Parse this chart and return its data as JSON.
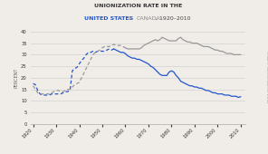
{
  "title_line1": "UNIONIZATION RATE IN THE",
  "title_line2_parts": [
    {
      "text": "UNITED STATES",
      "color": "#2255cc",
      "bold": true
    },
    {
      "text": " & ",
      "color": "#888888",
      "bold": false
    },
    {
      "text": "CANADA",
      "color": "#888888",
      "bold": false
    },
    {
      "text": ", 1920–2010",
      "color": "#444444",
      "bold": false
    }
  ],
  "ylabel": "PERCENT",
  "right_label": "CHART: BLOOMBERG VIEW",
  "us_color": "#2255cc",
  "canada_color": "#999999",
  "background": "#f0ede8",
  "us_split_dash": 1955,
  "canada_split_dash": 1960,
  "us_data": {
    "years": [
      1920,
      1921,
      1922,
      1923,
      1924,
      1925,
      1926,
      1927,
      1928,
      1929,
      1930,
      1931,
      1932,
      1933,
      1934,
      1935,
      1936,
      1937,
      1938,
      1939,
      1940,
      1941,
      1942,
      1943,
      1944,
      1945,
      1946,
      1947,
      1948,
      1949,
      1950,
      1951,
      1952,
      1953,
      1954,
      1955,
      1956,
      1957,
      1958,
      1959,
      1960,
      1961,
      1962,
      1963,
      1964,
      1965,
      1966,
      1967,
      1968,
      1969,
      1970,
      1971,
      1972,
      1973,
      1974,
      1975,
      1976,
      1977,
      1978,
      1979,
      1980,
      1981,
      1982,
      1983,
      1984,
      1985,
      1986,
      1987,
      1988,
      1989,
      1990,
      1991,
      1992,
      1993,
      1994,
      1995,
      1996,
      1997,
      1998,
      1999,
      2000,
      2001,
      2002,
      2003,
      2004,
      2005,
      2006,
      2007,
      2008,
      2009,
      2010
    ],
    "values": [
      17.5,
      17.0,
      14.5,
      13.0,
      12.5,
      12.5,
      12.5,
      12.5,
      13.0,
      13.0,
      13.0,
      13.0,
      13.0,
      13.5,
      14.0,
      14.0,
      14.5,
      23.0,
      24.0,
      24.5,
      26.0,
      27.5,
      28.5,
      30.0,
      31.0,
      31.0,
      31.5,
      31.0,
      31.5,
      31.5,
      31.5,
      31.5,
      32.0,
      32.5,
      32.0,
      32.5,
      32.0,
      31.5,
      31.0,
      31.0,
      30.5,
      29.5,
      29.0,
      28.5,
      28.5,
      28.0,
      28.0,
      27.5,
      27.0,
      26.5,
      26.0,
      25.0,
      24.5,
      23.5,
      22.5,
      21.5,
      21.0,
      21.0,
      21.0,
      22.5,
      23.0,
      22.5,
      21.0,
      20.0,
      18.5,
      18.0,
      17.5,
      17.0,
      16.5,
      16.5,
      16.0,
      16.0,
      15.5,
      15.5,
      15.0,
      14.5,
      14.5,
      14.0,
      13.5,
      13.5,
      13.0,
      13.0,
      13.0,
      12.5,
      12.5,
      12.5,
      12.0,
      12.0,
      12.0,
      11.5,
      11.8
    ]
  },
  "canada_data": {
    "years": [
      1920,
      1921,
      1922,
      1923,
      1924,
      1925,
      1926,
      1927,
      1928,
      1929,
      1930,
      1931,
      1932,
      1933,
      1934,
      1935,
      1936,
      1937,
      1938,
      1939,
      1940,
      1941,
      1942,
      1943,
      1944,
      1945,
      1946,
      1947,
      1948,
      1949,
      1950,
      1951,
      1952,
      1953,
      1954,
      1955,
      1956,
      1957,
      1958,
      1959,
      1960,
      1961,
      1962,
      1963,
      1964,
      1965,
      1966,
      1967,
      1968,
      1969,
      1970,
      1971,
      1972,
      1973,
      1974,
      1975,
      1976,
      1977,
      1978,
      1979,
      1980,
      1981,
      1982,
      1983,
      1984,
      1985,
      1986,
      1987,
      1988,
      1989,
      1990,
      1991,
      1992,
      1993,
      1994,
      1995,
      1996,
      1997,
      1998,
      1999,
      2000,
      2001,
      2002,
      2003,
      2004,
      2005,
      2006,
      2007,
      2008,
      2009,
      2010
    ],
    "values": [
      16.5,
      15.0,
      13.5,
      13.0,
      13.0,
      13.0,
      13.0,
      13.0,
      13.5,
      14.0,
      14.5,
      14.5,
      14.0,
      14.0,
      14.5,
      15.0,
      15.0,
      16.0,
      17.0,
      17.5,
      18.0,
      20.0,
      22.0,
      24.0,
      26.0,
      28.0,
      30.0,
      31.0,
      31.5,
      32.0,
      33.0,
      33.5,
      33.5,
      33.5,
      34.0,
      34.5,
      34.0,
      34.0,
      34.0,
      33.5,
      33.0,
      32.5,
      32.5,
      32.5,
      32.5,
      32.5,
      32.5,
      33.0,
      34.0,
      34.5,
      35.0,
      35.5,
      36.0,
      36.5,
      36.0,
      36.5,
      37.5,
      37.0,
      36.5,
      36.0,
      36.0,
      36.0,
      36.0,
      37.0,
      37.5,
      36.5,
      36.0,
      35.5,
      35.5,
      35.0,
      35.0,
      35.0,
      34.5,
      34.0,
      33.5,
      33.5,
      33.5,
      33.0,
      32.5,
      32.0,
      32.0,
      31.5,
      31.5,
      31.0,
      30.5,
      30.5,
      30.5,
      30.0,
      30.0,
      30.0,
      30.0
    ]
  },
  "ylim": [
    0,
    40
  ],
  "yticks": [
    0,
    5,
    10,
    15,
    20,
    25,
    30,
    35,
    40
  ],
  "xticks": [
    1920,
    1930,
    1940,
    1950,
    1960,
    1970,
    1980,
    1990,
    2000,
    2010
  ],
  "xlim": [
    1919,
    2012
  ]
}
